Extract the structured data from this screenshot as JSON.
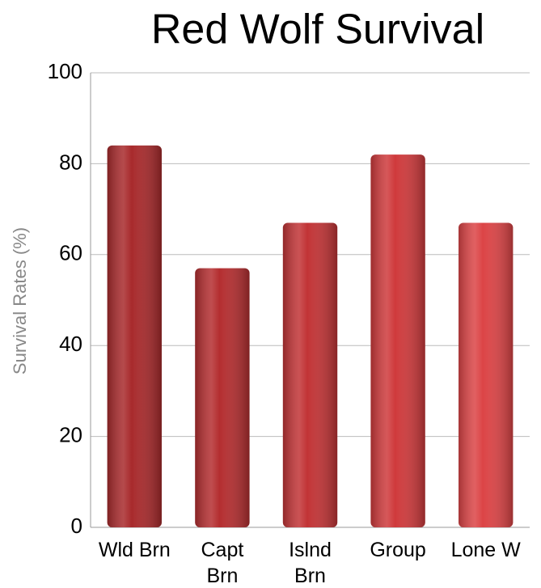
{
  "chart_data": {
    "type": "bar",
    "title": "Red Wolf Survival",
    "y_label": "Survival Rates (%)",
    "categories": [
      "Wld Brn",
      "Capt Brn",
      "Islnd Brn",
      "Group",
      "Lone W"
    ],
    "values": [
      84,
      57,
      67,
      82,
      67
    ],
    "colors": [
      "#a82a2c",
      "#b42e30",
      "#c23436",
      "#cf3a3c",
      "#dc4446"
    ],
    "ylim": [
      0,
      100
    ],
    "yticks": [
      0,
      20,
      40,
      60,
      80,
      100
    ],
    "grid": true
  }
}
